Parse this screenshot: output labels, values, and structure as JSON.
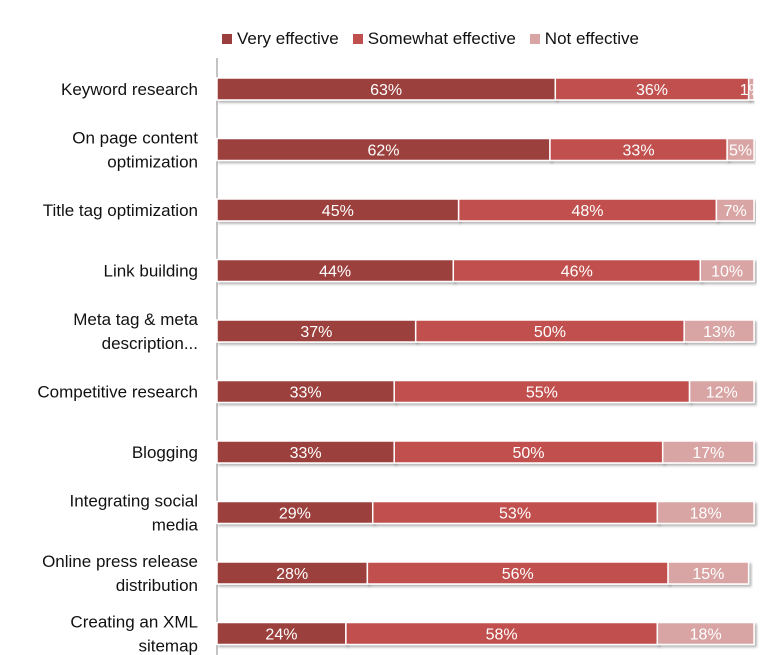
{
  "chart_data": {
    "type": "bar",
    "orientation": "horizontal",
    "stacked": true,
    "categories": [
      [
        "Keyword research"
      ],
      [
        "On page content",
        "optimization"
      ],
      [
        "Title tag optimization"
      ],
      [
        "Link building"
      ],
      [
        "Meta tag & meta",
        "description..."
      ],
      [
        "Competitive research"
      ],
      [
        "Blogging"
      ],
      [
        "Integrating social",
        "media"
      ],
      [
        "Online press release",
        "distribution"
      ],
      [
        "Creating an XML",
        "sitemap"
      ]
    ],
    "series": [
      {
        "name": "Very effective",
        "color": "#9b3f3e",
        "values": [
          63,
          62,
          45,
          44,
          37,
          33,
          33,
          29,
          28,
          24
        ]
      },
      {
        "name": "Somewhat effective",
        "color": "#c0504d",
        "values": [
          36,
          33,
          48,
          46,
          50,
          55,
          50,
          53,
          56,
          58
        ]
      },
      {
        "name": "Not effective",
        "color": "#d9a4a4",
        "values": [
          1,
          5,
          7,
          10,
          13,
          12,
          17,
          18,
          15,
          18
        ]
      }
    ],
    "value_suffix": "%",
    "xlim": [
      0,
      100
    ],
    "legend_position": "top",
    "grid": false
  }
}
